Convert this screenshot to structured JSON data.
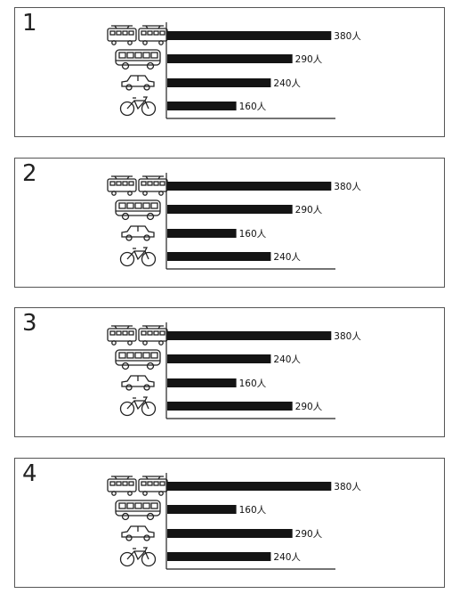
{
  "chart_data": [
    {
      "type": "bar",
      "panel_label": "1",
      "categories": [
        "train-icon",
        "bus-icon",
        "car-icon",
        "bicycle-icon"
      ],
      "values": [
        380,
        290,
        240,
        160
      ],
      "labels": [
        "380人",
        "290人",
        "240人",
        "160人"
      ],
      "xlim": [
        0,
        400
      ]
    },
    {
      "type": "bar",
      "panel_label": "2",
      "categories": [
        "train-icon",
        "bus-icon",
        "car-icon",
        "bicycle-icon"
      ],
      "values": [
        380,
        290,
        160,
        240
      ],
      "labels": [
        "380人",
        "290人",
        "160人",
        "240人"
      ],
      "xlim": [
        0,
        400
      ]
    },
    {
      "type": "bar",
      "panel_label": "3",
      "categories": [
        "train-icon",
        "bus-icon",
        "car-icon",
        "bicycle-icon"
      ],
      "values": [
        380,
        240,
        160,
        290
      ],
      "labels": [
        "380人",
        "240人",
        "160人",
        "290人"
      ],
      "xlim": [
        0,
        400
      ]
    },
    {
      "type": "bar",
      "panel_label": "4",
      "categories": [
        "train-icon",
        "bus-icon",
        "car-icon",
        "bicycle-icon"
      ],
      "values": [
        380,
        160,
        290,
        240
      ],
      "labels": [
        "380人",
        "160人",
        "290人",
        "240人"
      ],
      "xlim": [
        0,
        400
      ]
    }
  ]
}
